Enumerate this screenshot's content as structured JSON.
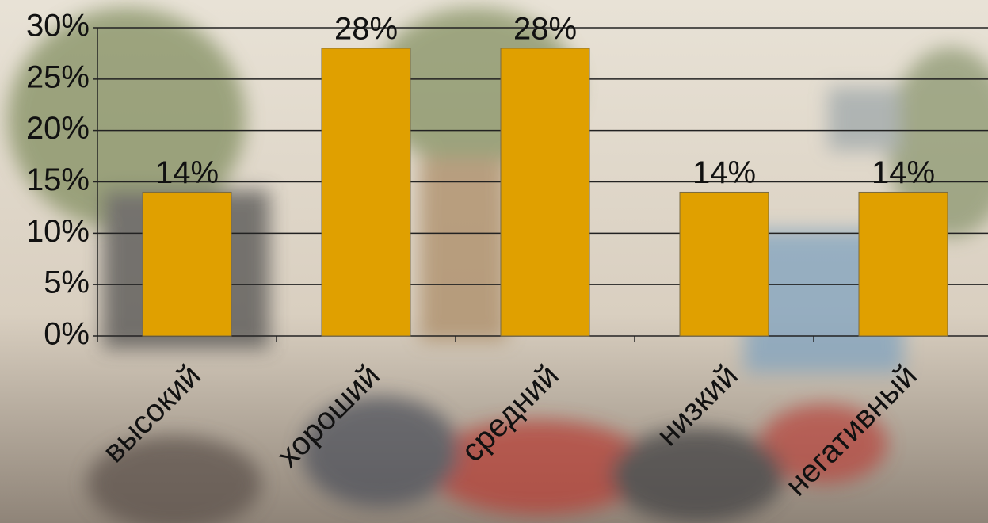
{
  "chart_data": {
    "type": "bar",
    "categories": [
      "высокий",
      "хороший",
      "средний",
      "низкий",
      "негативный"
    ],
    "values": [
      14,
      28,
      28,
      14,
      14
    ],
    "value_labels": [
      "14%",
      "28%",
      "28%",
      "14%",
      "14%"
    ],
    "color": "#e0a000",
    "ylim": [
      0,
      30
    ],
    "yticks": [
      {
        "value": 0,
        "label": "0%"
      },
      {
        "value": 5,
        "label": "5%"
      },
      {
        "value": 10,
        "label": "10%"
      },
      {
        "value": 15,
        "label": "15%"
      },
      {
        "value": 20,
        "label": "20%"
      },
      {
        "value": 25,
        "label": "25%"
      },
      {
        "value": 30,
        "label": "30%"
      }
    ],
    "grid": true
  }
}
